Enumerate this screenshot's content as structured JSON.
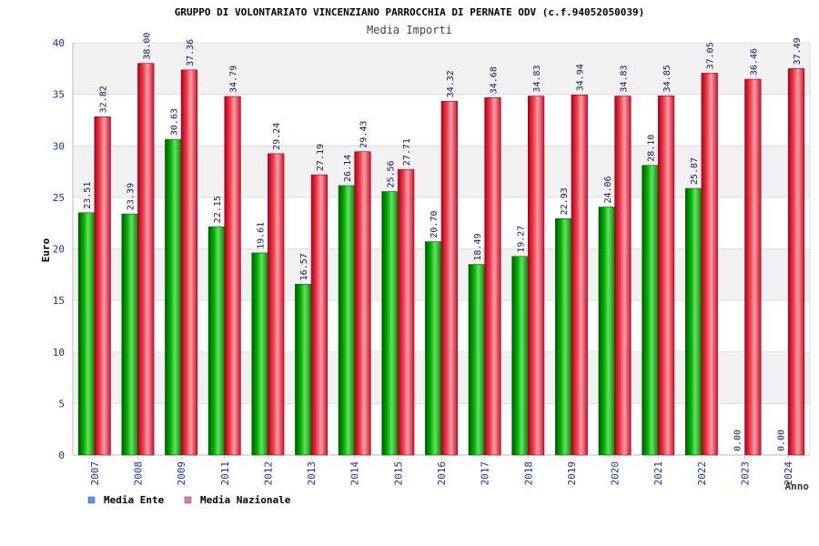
{
  "chart_data": {
    "type": "bar",
    "title": "GRUPPO DI VOLONTARIATO VINCENZIANO PARROCCHIA DI PERNATE ODV (c.f.94052050039)",
    "subtitle": "Media Importi",
    "xlabel": "Anno",
    "ylabel": "Euro",
    "ylim": [
      0,
      40
    ],
    "yticks": [
      "0",
      "5",
      "10",
      "15",
      "20",
      "25",
      "30",
      "35",
      "40"
    ],
    "grid": true,
    "legend_position": "bottom-left",
    "categories": [
      "2007",
      "2008",
      "2009",
      "2011",
      "2012",
      "2013",
      "2014",
      "2015",
      "2016",
      "2017",
      "2018",
      "2019",
      "2020",
      "2021",
      "2022",
      "2023",
      "2024"
    ],
    "series": [
      {
        "name": "Media Ente",
        "color": "#00a000",
        "legend_color": "#4c9be8",
        "values": [
          23.51,
          23.39,
          30.63,
          22.15,
          19.61,
          16.57,
          26.14,
          25.56,
          20.7,
          18.49,
          19.27,
          22.93,
          24.06,
          28.1,
          25.87,
          0.0,
          0.0
        ],
        "labels": [
          "23.51",
          "23.39",
          "30.63",
          "22.15",
          "19.61",
          "16.57",
          "26.14",
          "25.56",
          "20.70",
          "18.49",
          "19.27",
          "22.93",
          "24.06",
          "28.10",
          "25.87",
          "0.00",
          "0.00"
        ]
      },
      {
        "name": "Media Nazionale",
        "color": "#e8162a",
        "legend_color": "#e07aa8",
        "values": [
          32.82,
          38.0,
          37.36,
          34.79,
          29.24,
          27.19,
          29.43,
          27.71,
          34.32,
          34.68,
          34.83,
          34.94,
          34.83,
          34.85,
          37.05,
          36.46,
          37.49
        ],
        "labels": [
          "32.82",
          "38.00",
          "37.36",
          "34.79",
          "29.24",
          "27.19",
          "29.43",
          "27.71",
          "34.32",
          "34.68",
          "34.83",
          "34.94",
          "34.83",
          "34.85",
          "37.05",
          "36.46",
          "37.49"
        ]
      }
    ]
  }
}
